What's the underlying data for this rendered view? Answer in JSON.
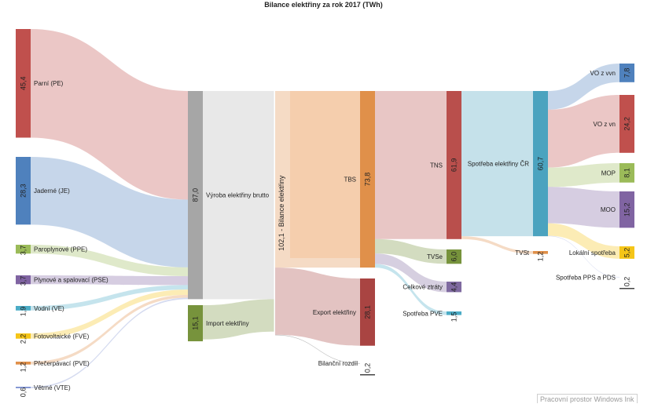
{
  "chart_data": {
    "type": "sankey",
    "title": "Bilance elektřiny za rok 2017 (TWh)",
    "colors": {
      "PE": "#c0504d",
      "JE": "#4f81bd",
      "PPE": "#9bbb59",
      "PSE": "#8064a2",
      "VE": "#4bacc6",
      "FVE": "#f5c518",
      "PVE": "#e0904a",
      "VTE": "#7b8fd1",
      "VYR": "#a6a6a6",
      "IMP": "#77933c",
      "BIL": "#e8965a",
      "TBS": "#e0904a",
      "EXP": "#a94442",
      "TNS": "#b94f4c",
      "SPOT": "#4ba3bf",
      "TVSE": "#77933c",
      "ZTR": "#7f6aa0",
      "SPVE": "#4bacc6",
      "TVST": "#e0904a",
      "BR": "#222222",
      "VOVVN": "#4f81bd",
      "VOVN": "#c0504d",
      "MOP": "#9bbb59",
      "MOO": "#8064a2",
      "LOK": "#f5c518",
      "PPS": "#7b8fd1"
    },
    "nodes": [
      {
        "id": "PE",
        "value": 45.4,
        "value_label": "45,4",
        "label": "Parní (PE)"
      },
      {
        "id": "JE",
        "value": 28.3,
        "value_label": "28,3",
        "label": "Jaderné (JE)"
      },
      {
        "id": "PPE",
        "value": 3.7,
        "value_label": "3,7",
        "label": "Paroplynové (PPE)"
      },
      {
        "id": "PSE",
        "value": 3.7,
        "value_label": "3,7",
        "label": "Plynové a spalovací (PSE)"
      },
      {
        "id": "VE",
        "value": 1.9,
        "value_label": "1,9",
        "label": "Vodní (VE)"
      },
      {
        "id": "FVE",
        "value": 2.2,
        "value_label": "2,2",
        "label": "Fotovoltaické (FVE)"
      },
      {
        "id": "PVE",
        "value": 1.2,
        "value_label": "1,2",
        "label": "Přečerpávací (PVE)"
      },
      {
        "id": "VTE",
        "value": 0.6,
        "value_label": "0,6",
        "label": "Větrné (VTE)"
      },
      {
        "id": "VYR",
        "value": 87.0,
        "value_label": "87,0",
        "label": "Výroba elektřiny brutto"
      },
      {
        "id": "IMP",
        "value": 15.1,
        "value_label": "15,1",
        "label": "Import elektřiny"
      },
      {
        "id": "BIL",
        "value": 102.1,
        "value_label": "102,1",
        "label": "Bilance elektřiny"
      },
      {
        "id": "TBS",
        "value": 73.8,
        "value_label": "73,8",
        "label": "TBS"
      },
      {
        "id": "EXP",
        "value": 28.1,
        "value_label": "28,1",
        "label": "Export elektřiny"
      },
      {
        "id": "BR",
        "value": 0.2,
        "value_label": "0,2",
        "label": "Bilanční rozdíl"
      },
      {
        "id": "TNS",
        "value": 61.9,
        "value_label": "61,9",
        "label": "TNS"
      },
      {
        "id": "TVSE",
        "value": 6.0,
        "value_label": "6,0",
        "label": "TVSe"
      },
      {
        "id": "ZTR",
        "value": 4.4,
        "value_label": "4,4",
        "label": "Celkové ztráty"
      },
      {
        "id": "SPVE",
        "value": 1.5,
        "value_label": "1,5",
        "label": "Spotřeba PVE"
      },
      {
        "id": "SPOT",
        "value": 60.7,
        "value_label": "60,7",
        "label": "Spotřeba elektřiny ČR"
      },
      {
        "id": "TVST",
        "value": 1.2,
        "value_label": "1,2",
        "label": "TVSt"
      },
      {
        "id": "VOVVN",
        "value": 7.8,
        "value_label": "7,8",
        "label": "VO z vvn"
      },
      {
        "id": "VOVN",
        "value": 24.2,
        "value_label": "24,2",
        "label": "VO z vn"
      },
      {
        "id": "MOP",
        "value": 8.1,
        "value_label": "8,1",
        "label": "MOP"
      },
      {
        "id": "MOO",
        "value": 15.2,
        "value_label": "15,2",
        "label": "MOO"
      },
      {
        "id": "LOK",
        "value": 5.2,
        "value_label": "5,2",
        "label": "Lokální spotřeba"
      },
      {
        "id": "PPS",
        "value": 0.2,
        "value_label": "0,2",
        "label": "Spotřeba PPS a PDS"
      }
    ],
    "links": [
      {
        "source": "PE",
        "target": "VYR",
        "value": 45.4
      },
      {
        "source": "JE",
        "target": "VYR",
        "value": 28.3
      },
      {
        "source": "PPE",
        "target": "VYR",
        "value": 3.7
      },
      {
        "source": "PSE",
        "target": "VYR",
        "value": 3.7
      },
      {
        "source": "VE",
        "target": "VYR",
        "value": 1.9
      },
      {
        "source": "FVE",
        "target": "VYR",
        "value": 2.2
      },
      {
        "source": "PVE",
        "target": "VYR",
        "value": 1.2
      },
      {
        "source": "VTE",
        "target": "VYR",
        "value": 0.6
      },
      {
        "source": "BIL",
        "target": "TBS",
        "value": 73.8
      },
      {
        "source": "BIL",
        "target": "EXP",
        "value": 28.1
      },
      {
        "source": "BIL",
        "target": "BR",
        "value": 0.2
      },
      {
        "source": "TBS",
        "target": "TNS",
        "value": 61.9
      },
      {
        "source": "TBS",
        "target": "TVSE",
        "value": 6.0
      },
      {
        "source": "TBS",
        "target": "ZTR",
        "value": 4.4
      },
      {
        "source": "TBS",
        "target": "SPVE",
        "value": 1.5
      },
      {
        "source": "TNS",
        "target": "SPOT",
        "value": 60.7
      },
      {
        "source": "TNS",
        "target": "TVST",
        "value": 1.2
      },
      {
        "source": "SPOT",
        "target": "VOVVN",
        "value": 7.8
      },
      {
        "source": "SPOT",
        "target": "VOVN",
        "value": 24.2
      },
      {
        "source": "SPOT",
        "target": "MOP",
        "value": 8.1
      },
      {
        "source": "SPOT",
        "target": "MOO",
        "value": 15.2
      },
      {
        "source": "SPOT",
        "target": "LOK",
        "value": 5.2
      },
      {
        "source": "SPOT",
        "target": "PPS",
        "value": 0.2
      }
    ]
  },
  "watermark": "Pracovní prostor Windows Ink"
}
